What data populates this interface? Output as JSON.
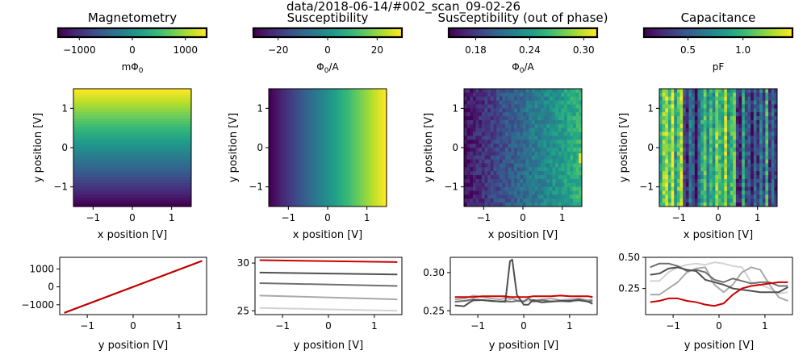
{
  "figure": {
    "suptitle": "data/2018-06-14/#002_scan_09-02-26"
  },
  "colors": {
    "viridis": [
      "#440154",
      "#482878",
      "#3e4989",
      "#31688e",
      "#26828e",
      "#1f9e89",
      "#35b779",
      "#6ece58",
      "#b5de2b",
      "#fde725"
    ],
    "linecolors": [
      "#d3d3d3",
      "#a9a9a9",
      "#707070",
      "#505050"
    ],
    "highlight": "#cc0000"
  },
  "chart_data": [
    {
      "type": "heatmap",
      "title": "Magnetometry",
      "pattern": "vertical_gradient",
      "colorbar": {
        "min": -1400,
        "max": 1400,
        "ticks": [
          -1000,
          0,
          1000
        ],
        "tick_labels": [
          "−1000",
          "0",
          "1000"
        ],
        "label": "mΦ",
        "label_sub": "0",
        "label_after": ""
      },
      "xlabel": "x position [V]",
      "ylabel": "y position [V]",
      "xlim": [
        -1.5,
        1.5
      ],
      "ylim": [
        -1.5,
        1.5
      ],
      "xticks": [
        -1,
        0,
        1
      ],
      "yticks": [
        -1,
        0,
        1
      ],
      "xtick_labels": [
        "−1",
        "0",
        "1"
      ],
      "ytick_labels": [
        "−1",
        "0",
        "1"
      ]
    },
    {
      "type": "heatmap",
      "title": "Susceptibility",
      "pattern": "horizontal_gradient",
      "colorbar": {
        "min": -30,
        "max": 30,
        "ticks": [
          -20,
          0,
          20
        ],
        "tick_labels": [
          "−20",
          "0",
          "20"
        ],
        "label": "Φ",
        "label_sub": "0",
        "label_after": "/A"
      },
      "xlabel": "x position [V]",
      "ylabel": "y position [V]",
      "xlim": [
        -1.5,
        1.5
      ],
      "ylim": [
        -1.5,
        1.5
      ],
      "xticks": [
        -1,
        0,
        1
      ],
      "yticks": [
        -1,
        0,
        1
      ],
      "xtick_labels": [
        "−1",
        "0",
        "1"
      ],
      "ytick_labels": [
        "−1",
        "0",
        "1"
      ]
    },
    {
      "type": "heatmap",
      "title": "Susceptibility (out of phase)",
      "pattern": "noisy_horizontal_gradient",
      "colorbar": {
        "min": 0.15,
        "max": 0.315,
        "ticks": [
          0.18,
          0.24,
          0.3
        ],
        "tick_labels": [
          "0.18",
          "0.24",
          "0.30"
        ],
        "label": "Φ",
        "label_sub": "0",
        "label_after": "/A"
      },
      "xlabel": "x position [V]",
      "ylabel": "y position [V]",
      "xlim": [
        -1.5,
        1.5
      ],
      "ylim": [
        -1.5,
        1.5
      ],
      "xticks": [
        -1,
        0,
        1
      ],
      "yticks": [
        -1,
        0,
        1
      ],
      "xtick_labels": [
        "−1",
        "0",
        "1"
      ],
      "ytick_labels": [
        "−1",
        "0",
        "1"
      ]
    },
    {
      "type": "heatmap",
      "title": "Capacitance",
      "pattern": "vertical_stripes",
      "stripe_values": [
        0.9,
        1.2,
        1.3,
        1.0,
        1.4,
        0.8,
        1.1,
        1.3,
        0.4,
        0.2,
        0.7,
        0.5,
        0.1,
        0.6,
        0.9,
        1.1,
        0.7,
        1.0,
        0.8,
        1.2,
        1.0,
        0.9,
        1.3,
        0.8,
        1.0,
        1.1,
        0.3,
        0.2,
        0.9,
        0.4,
        0.5,
        0.2,
        0.6,
        0.3,
        0.7,
        0.4,
        1.0,
        0.3,
        0.6,
        0.3
      ],
      "colorbar": {
        "min": 0.1,
        "max": 1.45,
        "ticks": [
          0.5,
          1.0
        ],
        "tick_labels": [
          "0.5",
          "1.0"
        ],
        "label": "pF",
        "label_sub": "",
        "label_after": ""
      },
      "xlabel": "x position [V]",
      "ylabel": "y position [V]",
      "xlim": [
        -1.5,
        1.5
      ],
      "ylim": [
        -1.5,
        1.5
      ],
      "xticks": [
        -1,
        0,
        1
      ],
      "yticks": [
        -1,
        0,
        1
      ],
      "xtick_labels": [
        "−1",
        "0",
        "1"
      ],
      "ytick_labels": [
        "−1",
        "0",
        "1"
      ]
    },
    {
      "type": "line",
      "xlabel": "y position [V]",
      "xlim": [
        -1.6,
        1.6
      ],
      "ylim": [
        -1550,
        1650
      ],
      "xticks": [
        -1,
        0,
        1
      ],
      "xtick_labels": [
        "−1",
        "0",
        "1"
      ],
      "yticks": [
        -1000,
        0,
        1000
      ],
      "ytick_labels": [
        "−1000",
        "0",
        "1000"
      ],
      "x": [
        -1.5,
        1.5
      ],
      "series": [
        {
          "color_index": 0,
          "values": [
            -1450,
            1450
          ]
        },
        {
          "color_index": 1,
          "values": [
            -1450,
            1450
          ]
        },
        {
          "color_index": 2,
          "values": [
            -1450,
            1450
          ]
        },
        {
          "color_index": 3,
          "values": [
            -1450,
            1450
          ]
        },
        {
          "color_index": "highlight",
          "values": [
            -1450,
            1450
          ]
        }
      ]
    },
    {
      "type": "line",
      "xlabel": "y position [V]",
      "xlim": [
        -1.6,
        1.6
      ],
      "ylim": [
        24.6,
        30.6
      ],
      "xticks": [
        -1,
        0,
        1
      ],
      "xtick_labels": [
        "−1",
        "0",
        "1"
      ],
      "yticks": [
        25,
        30
      ],
      "ytick_labels": [
        "25",
        "30"
      ],
      "x": [
        -1.5,
        1.5
      ],
      "series": [
        {
          "color_index": 0,
          "values": [
            25.3,
            25.0
          ]
        },
        {
          "color_index": 1,
          "values": [
            26.6,
            26.2
          ]
        },
        {
          "color_index": 2,
          "values": [
            27.9,
            27.6
          ]
        },
        {
          "color_index": 3,
          "values": [
            29.0,
            28.8
          ]
        },
        {
          "color_index": "highlight",
          "values": [
            30.3,
            30.1
          ]
        }
      ]
    },
    {
      "type": "line",
      "xlabel": "y position [V]",
      "xlim": [
        -1.6,
        1.6
      ],
      "ylim": [
        0.245,
        0.32
      ],
      "xticks": [
        -1,
        0,
        1
      ],
      "xtick_labels": [
        "−1",
        "0",
        "1"
      ],
      "yticks": [
        0.25,
        0.3
      ],
      "ytick_labels": [
        "0.25",
        "0.30"
      ],
      "x": [
        -1.5,
        -1.3,
        -1.1,
        -0.9,
        -0.7,
        -0.5,
        -0.4,
        -0.3,
        -0.25,
        -0.15,
        0.0,
        0.1,
        0.2,
        0.4,
        0.6,
        0.8,
        1.0,
        1.2,
        1.4,
        1.5
      ],
      "series": [
        {
          "color_index": 0,
          "values": [
            0.261,
            0.263,
            0.262,
            0.264,
            0.262,
            0.263,
            0.261,
            0.262,
            0.262,
            0.263,
            0.262,
            0.263,
            0.262,
            0.261,
            0.263,
            0.262,
            0.262,
            0.263,
            0.262,
            0.262
          ]
        },
        {
          "color_index": 1,
          "values": [
            0.265,
            0.266,
            0.27,
            0.268,
            0.266,
            0.265,
            0.267,
            0.265,
            0.266,
            0.264,
            0.263,
            0.266,
            0.264,
            0.265,
            0.266,
            0.264,
            0.265,
            0.266,
            0.264,
            0.265
          ]
        },
        {
          "color_index": 2,
          "values": [
            0.262,
            0.263,
            0.265,
            0.264,
            0.263,
            0.262,
            0.263,
            0.262,
            0.262,
            0.263,
            0.262,
            0.266,
            0.262,
            0.264,
            0.262,
            0.263,
            0.262,
            0.265,
            0.262,
            0.263
          ]
        },
        {
          "color_index": 3,
          "values": [
            0.257,
            0.256,
            0.264,
            0.264,
            0.263,
            0.262,
            0.262,
            0.315,
            0.317,
            0.271,
            0.258,
            0.258,
            0.264,
            0.261,
            0.262,
            0.263,
            0.263,
            0.264,
            0.262,
            0.259
          ]
        },
        {
          "color_index": "highlight",
          "values": [
            0.268,
            0.268,
            0.268,
            0.269,
            0.269,
            0.269,
            0.269,
            0.268,
            0.268,
            0.268,
            0.268,
            0.268,
            0.269,
            0.269,
            0.269,
            0.27,
            0.269,
            0.269,
            0.269,
            0.268
          ]
        }
      ]
    },
    {
      "type": "line",
      "xlabel": "y position [V]",
      "xlim": [
        -1.6,
        1.6
      ],
      "ylim": [
        0.04,
        0.5
      ],
      "xticks": [
        -1,
        0,
        1
      ],
      "xtick_labels": [
        "−1",
        "0",
        "1"
      ],
      "yticks": [
        0.25,
        0.5
      ],
      "ytick_labels": [
        "0.25",
        "0.50"
      ],
      "x": [
        -1.5,
        -1.3,
        -1.1,
        -0.9,
        -0.7,
        -0.5,
        -0.3,
        -0.1,
        0.1,
        0.3,
        0.5,
        0.7,
        0.9,
        1.1,
        1.3,
        1.5
      ],
      "series": [
        {
          "color_index": 0,
          "values": [
            0.31,
            0.31,
            0.38,
            0.42,
            0.44,
            0.45,
            0.44,
            0.46,
            0.45,
            0.43,
            0.42,
            0.3,
            0.28,
            0.25,
            0.21,
            0.22
          ]
        },
        {
          "color_index": 1,
          "values": [
            0.2,
            0.2,
            0.25,
            0.3,
            0.38,
            0.41,
            0.42,
            0.28,
            0.22,
            0.28,
            0.38,
            0.42,
            0.4,
            0.28,
            0.18,
            0.15
          ]
        },
        {
          "color_index": 2,
          "values": [
            0.42,
            0.45,
            0.45,
            0.43,
            0.39,
            0.4,
            0.38,
            0.32,
            0.3,
            0.33,
            0.31,
            0.29,
            0.3,
            0.3,
            0.27,
            0.27
          ]
        },
        {
          "color_index": 3,
          "values": [
            0.36,
            0.37,
            0.41,
            0.42,
            0.4,
            0.39,
            0.32,
            0.3,
            0.28,
            0.25,
            0.24,
            0.23,
            0.22,
            0.22,
            0.22,
            0.26
          ]
        },
        {
          "color_index": "highlight",
          "values": [
            0.14,
            0.15,
            0.17,
            0.17,
            0.15,
            0.14,
            0.12,
            0.11,
            0.13,
            0.2,
            0.25,
            0.27,
            0.28,
            0.29,
            0.3,
            0.3
          ]
        }
      ]
    }
  ]
}
